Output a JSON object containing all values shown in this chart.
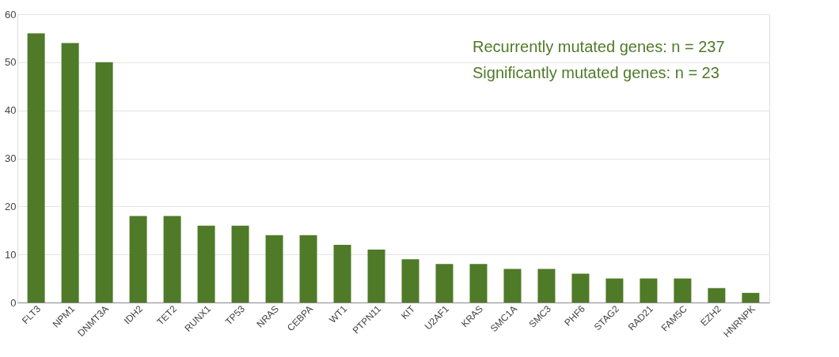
{
  "chart_data": {
    "type": "bar",
    "categories": [
      "FLT3",
      "NPM1",
      "DNMT3A",
      "IDH2",
      "TET2",
      "RUNX1",
      "TP53",
      "NRAS",
      "CEBPA",
      "WT1",
      "PTPN11",
      "KIT",
      "U2AF1",
      "KRAS",
      "SMC1A",
      "SMC3",
      "PHF6",
      "STAG2",
      "RAD21",
      "FAM5C",
      "EZH2",
      "HNRNPK"
    ],
    "values": [
      56,
      54,
      50,
      18,
      18,
      16,
      16,
      14,
      14,
      12,
      11,
      9,
      8,
      8,
      7,
      7,
      6,
      5,
      5,
      5,
      3,
      2
    ],
    "color": "#4f7a28",
    "ylim": [
      0,
      60
    ],
    "yticks": [
      0,
      10,
      20,
      30,
      40,
      50,
      60
    ],
    "grid": "y",
    "annotations": [
      "Recurrently mutated genes: n = 237",
      "Significantly mutated genes: n = 23"
    ]
  }
}
